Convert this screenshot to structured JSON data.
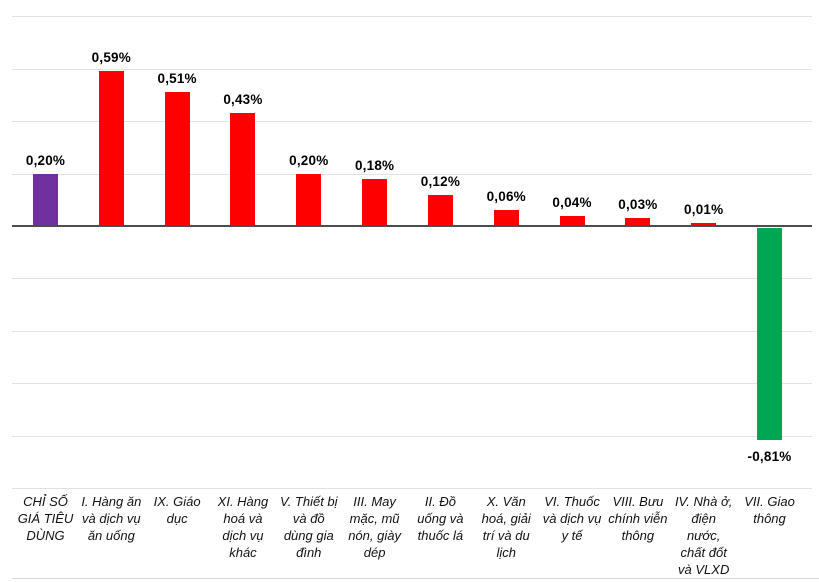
{
  "chart_data": {
    "type": "bar",
    "title": "",
    "xlabel": "",
    "ylabel": "",
    "unit": "%",
    "decimal_separator": ",",
    "legend": "none",
    "grid": "horizontal",
    "gridline_step_pct": 0.2,
    "gridlines_pct": [
      0.8,
      0.6,
      0.4,
      0.2,
      -0.2,
      -0.4,
      -0.6,
      -0.8,
      -1.0
    ],
    "ylim": [
      -1.36,
      0.86
    ],
    "categories": [
      "CHỈ SỐ\nGIÁ TIÊU\nDÙNG",
      "I. Hàng ăn\nvà dịch vụ\năn uống",
      "IX. Giáo\ndục",
      "XI. Hàng\nhoá và\ndịch vụ\nkhác",
      "V. Thiết bị\nvà đồ\ndùng gia\nđình",
      "III. May\nmặc, mũ\nnón, giày\ndép",
      "II. Đồ\nuống và\nthuốc lá",
      "X. Văn\nhoá, giải\ntrí và du\nlịch",
      "VI. Thuốc\nvà dịch vụ\ny tế",
      "VIII. Bưu\nchính viễn\nthông",
      "IV. Nhà ở,\nđiện\nnước,\nchất đốt\nvà VLXD",
      "VII. Giao\nthông"
    ],
    "values": [
      0.2,
      0.59,
      0.51,
      0.43,
      0.2,
      0.18,
      0.12,
      0.06,
      0.04,
      0.03,
      0.01,
      -0.81
    ],
    "value_labels": [
      "0,20%",
      "0,59%",
      "0,51%",
      "0,43%",
      "0,20%",
      "0,18%",
      "0,12%",
      "0,06%",
      "0,04%",
      "0,03%",
      "0,01%",
      "-0,81%"
    ],
    "bar_colors": [
      "#7030A0",
      "#FF0000",
      "#FF0000",
      "#FF0000",
      "#FF0000",
      "#FF0000",
      "#FF0000",
      "#FF0000",
      "#FF0000",
      "#FF0000",
      "#FF0000",
      "#00A651"
    ],
    "colors": {
      "cpi_total": "#7030A0",
      "increase": "#FF0000",
      "decrease": "#00A651",
      "gridline": "#E2E2E2",
      "axis": "#4D4D4D",
      "label_text": "#000000"
    }
  }
}
